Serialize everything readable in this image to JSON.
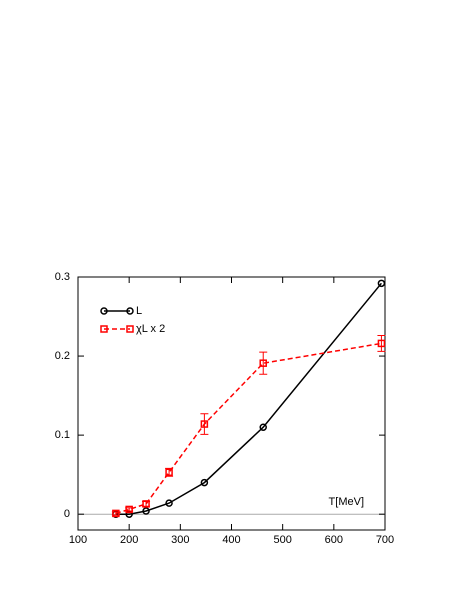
{
  "chart_data": {
    "type": "line",
    "x_label": "T[MeV]",
    "xlim": [
      100,
      700
    ],
    "xticks": [
      100,
      200,
      300,
      400,
      500,
      600,
      700
    ],
    "ylim": [
      -0.02,
      0.3
    ],
    "yticks": [
      0,
      0.1,
      0.2,
      0.3
    ],
    "zero_line": true,
    "legend": "upper-left",
    "series": [
      {
        "name": "L",
        "color": "#000000",
        "marker": "circle",
        "dash": false,
        "x": [
          174,
          200,
          233,
          278,
          347,
          462,
          693
        ],
        "values": [
          0.0,
          0.0,
          0.004,
          0.014,
          0.04,
          0.11,
          0.292
        ]
      },
      {
        "name": "χL x 2",
        "color": "#ff0000",
        "marker": "square",
        "dash": true,
        "x": [
          174,
          200,
          233,
          278,
          347,
          462,
          693
        ],
        "values": [
          0.001,
          0.006,
          0.013,
          0.053,
          0.114,
          0.191,
          0.216
        ],
        "errors": [
          0.002,
          0.002,
          0.003,
          0.005,
          0.013,
          0.014,
          0.01
        ]
      }
    ]
  }
}
